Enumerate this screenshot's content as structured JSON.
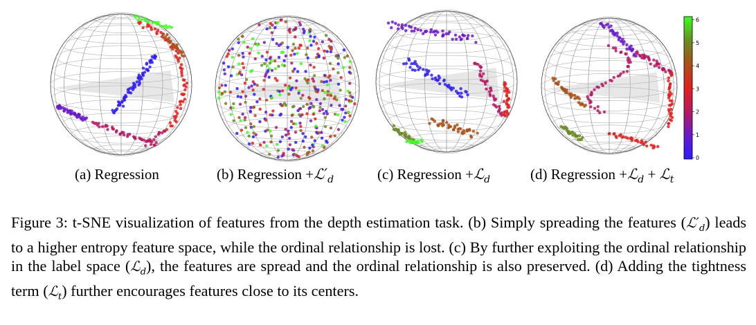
{
  "figure": {
    "panels": [
      {
        "id": "a",
        "label": "(a) Regression",
        "suffix": ""
      },
      {
        "id": "b",
        "label": "(b) Regression +",
        "suffix": "d"
      },
      {
        "id": "c",
        "label": "(c) Regression +",
        "suffix": "d"
      },
      {
        "id": "d",
        "label": "(d) Regression +",
        "suffix": "d"
      }
    ],
    "colorbar": {
      "ticks": [
        "0",
        "1",
        "2",
        "3",
        "4",
        "5",
        "6"
      ],
      "colors": [
        "#2b1cff",
        "#6a1ac8",
        "#b41a63",
        "#e0201f",
        "#a7521a",
        "#6b8a22",
        "#3cff20"
      ]
    },
    "caption": {
      "part1": "Figure 3: t-SNE visualization of features from the depth estimation task. (b) Simply spreading the features (",
      "part2": ") leads to a higher entropy feature space, while the ordinal relationship is lost. (c) By further exploiting the ordinal relationship in the label space (",
      "part3": "), the features are spread and the ordinal relationship is also preserved. (d) Adding the tightness term (",
      "part4": ") further encourages features close to its centers."
    }
  }
}
